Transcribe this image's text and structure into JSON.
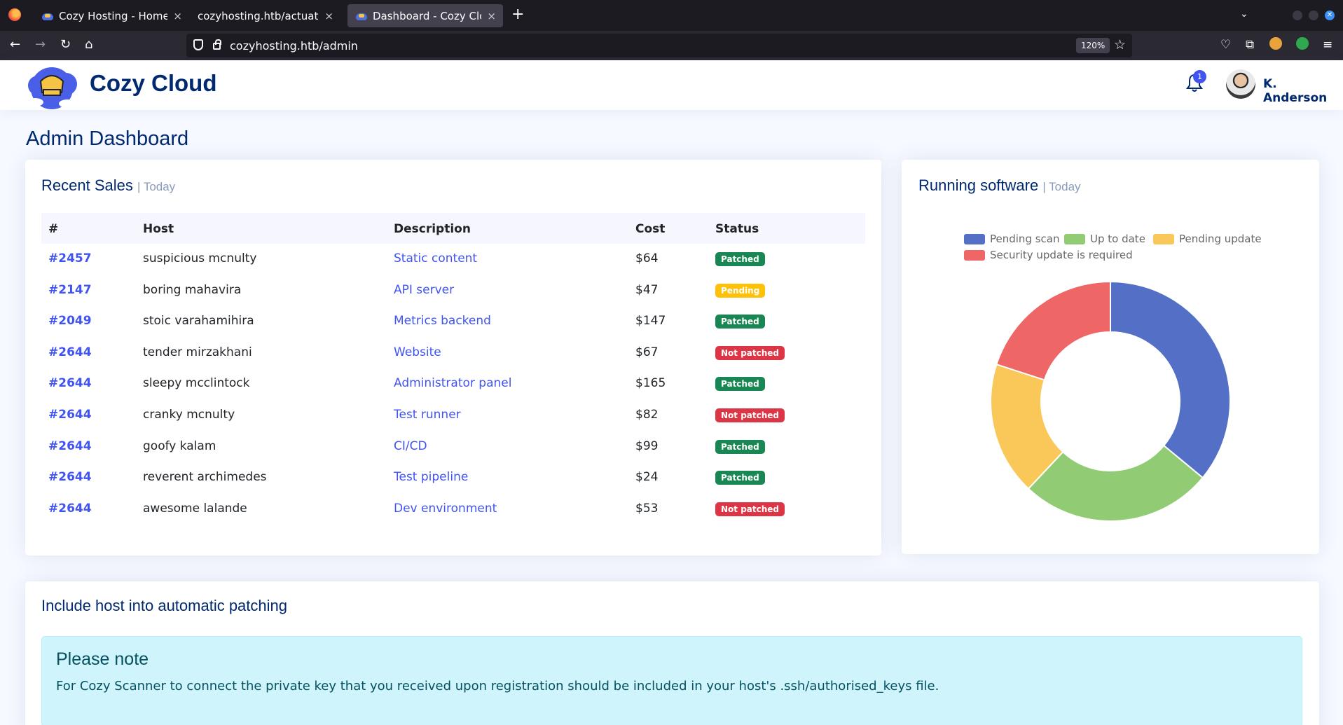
{
  "browser": {
    "tabs": [
      {
        "title": "Cozy Hosting - Home",
        "close": "×"
      },
      {
        "title": "cozyhosting.htb/actuator/ses",
        "close": "×"
      },
      {
        "title": "Dashboard - Cozy Cloud",
        "close": "×"
      }
    ],
    "new_tab": "+",
    "url": "cozyhosting.htb/admin",
    "zoom": "120%"
  },
  "header": {
    "brand": "Cozy Cloud",
    "notifications_count": "1",
    "user_name": "K. Anderson"
  },
  "main": {
    "page_title": "Admin Dashboard",
    "recent_sales": {
      "title": "Recent Sales",
      "subtitle": "| Today",
      "columns": [
        "#",
        "Host",
        "Description",
        "Cost",
        "Status"
      ],
      "rows": [
        {
          "id": "#2457",
          "host": "suspicious mcnulty",
          "description": "Static content",
          "cost": "$64",
          "status": "Patched",
          "status_kind": "patched"
        },
        {
          "id": "#2147",
          "host": "boring mahavira",
          "description": "API server",
          "cost": "$47",
          "status": "Pending",
          "status_kind": "pending"
        },
        {
          "id": "#2049",
          "host": "stoic varahamihira",
          "description": "Metrics backend",
          "cost": "$147",
          "status": "Patched",
          "status_kind": "patched"
        },
        {
          "id": "#2644",
          "host": "tender mirzakhani",
          "description": "Website",
          "cost": "$67",
          "status": "Not patched",
          "status_kind": "notpatched"
        },
        {
          "id": "#2644",
          "host": "sleepy mcclintock",
          "description": "Administrator panel",
          "cost": "$165",
          "status": "Patched",
          "status_kind": "patched"
        },
        {
          "id": "#2644",
          "host": "cranky mcnulty",
          "description": "Test runner",
          "cost": "$82",
          "status": "Not patched",
          "status_kind": "notpatched"
        },
        {
          "id": "#2644",
          "host": "goofy kalam",
          "description": "CI/CD",
          "cost": "$99",
          "status": "Patched",
          "status_kind": "patched"
        },
        {
          "id": "#2644",
          "host": "reverent archimedes",
          "description": "Test pipeline",
          "cost": "$24",
          "status": "Patched",
          "status_kind": "patched"
        },
        {
          "id": "#2644",
          "host": "awesome lalande",
          "description": "Dev environment",
          "cost": "$53",
          "status": "Not patched",
          "status_kind": "notpatched"
        }
      ]
    },
    "running_software": {
      "title": "Running software",
      "subtitle": "| Today"
    },
    "patching": {
      "title": "Include host into automatic patching",
      "alert_heading": "Please note",
      "alert_text": "For Cozy Scanner to connect the private key that you received upon registration should be included in your host's .ssh/authorised_keys file."
    }
  },
  "colors": {
    "primary": "#4154f1",
    "navy": "#012970",
    "patched": "#198754",
    "pending": "#ffc107",
    "not_patched": "#dc3545"
  },
  "chart_data": {
    "type": "pie",
    "donut": true,
    "categories": [
      "Pending scan",
      "Up to date",
      "Pending update",
      "Security update is required"
    ],
    "values": [
      36,
      26,
      18,
      20
    ],
    "colors": [
      "#5470c6",
      "#91cc75",
      "#fac858",
      "#ee6666"
    ],
    "legend_position": "top"
  }
}
